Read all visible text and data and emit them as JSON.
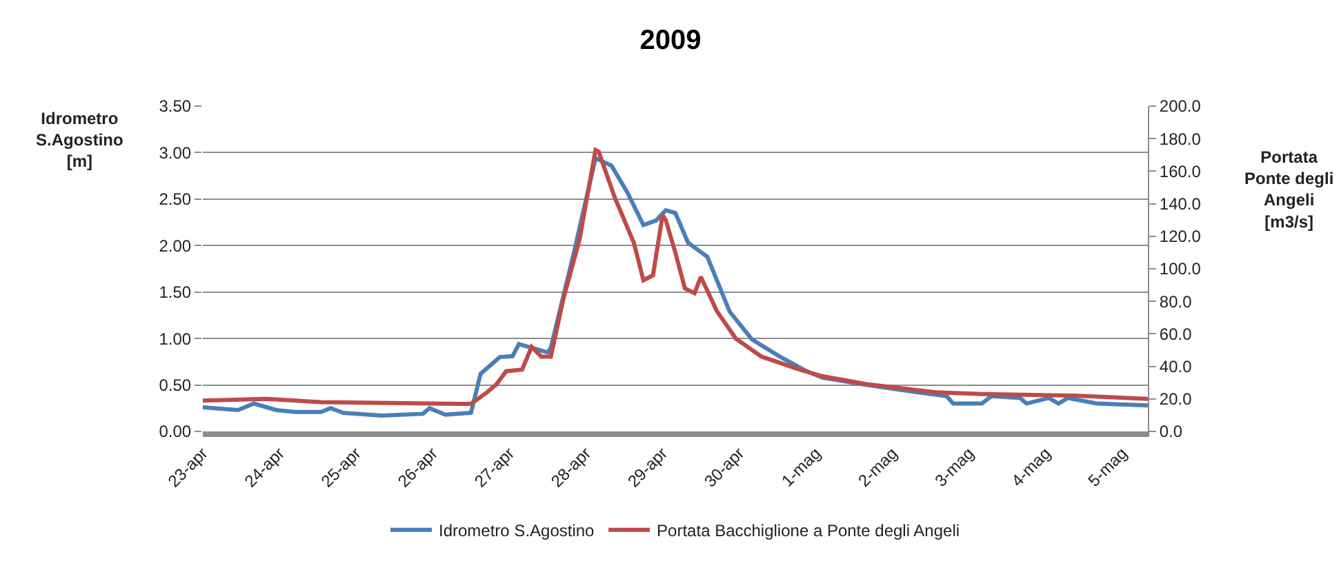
{
  "chart_data": {
    "type": "line",
    "title": "2009",
    "ylabel": "Idrometro\nS.Agostino\n[m]",
    "y2label": "Portata\nPonte degli\nAngeli\n[m3/s]",
    "xlim": [
      "2009-04-23T00:00",
      "2009-05-05T08:00"
    ],
    "xticks": [
      {
        "value": "2009-04-23",
        "label": "23-apr"
      },
      {
        "value": "2009-04-24",
        "label": "24-apr"
      },
      {
        "value": "2009-04-25",
        "label": "25-apr"
      },
      {
        "value": "2009-04-26",
        "label": "26-apr"
      },
      {
        "value": "2009-04-27",
        "label": "27-apr"
      },
      {
        "value": "2009-04-28",
        "label": "28-apr"
      },
      {
        "value": "2009-04-29",
        "label": "29-apr"
      },
      {
        "value": "2009-04-30",
        "label": "30-apr"
      },
      {
        "value": "2009-05-01",
        "label": "1-mag"
      },
      {
        "value": "2009-05-02",
        "label": "2-mag"
      },
      {
        "value": "2009-05-03",
        "label": "3-mag"
      },
      {
        "value": "2009-05-04",
        "label": "4-mag"
      },
      {
        "value": "2009-05-05",
        "label": "5-mag"
      }
    ],
    "ylim": [
      0,
      3.5
    ],
    "yticks": [
      {
        "value": 0,
        "label": "0.00"
      },
      {
        "value": 0.5,
        "label": "0.50"
      },
      {
        "value": 1,
        "label": "1.00"
      },
      {
        "value": 1.5,
        "label": "1.50"
      },
      {
        "value": 2,
        "label": "2.00"
      },
      {
        "value": 2.5,
        "label": "2.50"
      },
      {
        "value": 3,
        "label": "3.00"
      },
      {
        "value": 3.5,
        "label": "3.50"
      }
    ],
    "y2lim": [
      0,
      200
    ],
    "y2ticks": [
      {
        "value": 0,
        "label": "0.0"
      },
      {
        "value": 20,
        "label": "20.0"
      },
      {
        "value": 40,
        "label": "40.0"
      },
      {
        "value": 60,
        "label": "60.0"
      },
      {
        "value": 80,
        "label": "80.0"
      },
      {
        "value": 100,
        "label": "100.0"
      },
      {
        "value": 120,
        "label": "120.0"
      },
      {
        "value": 140,
        "label": "140.0"
      },
      {
        "value": 160,
        "label": "160.0"
      },
      {
        "value": 180,
        "label": "180.0"
      },
      {
        "value": 200,
        "label": "200.0"
      }
    ],
    "grid": "y",
    "legend": "bottom",
    "marker": "none",
    "line_style": "solid",
    "series": [
      {
        "name": "Idrometro S.Agostino",
        "color": "#4a7ebb",
        "x": [
          "2009-04-23T00:00",
          "2009-04-23T11:00",
          "2009-04-23T16:00",
          "2009-04-23T23:00",
          "2009-04-24T05:00",
          "2009-04-24T13:00",
          "2009-04-24T16:00",
          "2009-04-24T20:00",
          "2009-04-25T08:00",
          "2009-04-25T21:00",
          "2009-04-25T23:00",
          "2009-04-26T04:00",
          "2009-04-26T12:00",
          "2009-04-26T15:00",
          "2009-04-26T21:00",
          "2009-04-27T01:00",
          "2009-04-27T03:00",
          "2009-04-27T07:00",
          "2009-04-27T12:00",
          "2009-04-27T13:00",
          "2009-04-27T20:00",
          "2009-04-28T03:00",
          "2009-04-28T08:00",
          "2009-04-28T13:00",
          "2009-04-28T18:00",
          "2009-04-28T22:00",
          "2009-04-29T01:00",
          "2009-04-29T04:00",
          "2009-04-29T08:00",
          "2009-04-29T14:00",
          "2009-04-29T21:00",
          "2009-04-30T04:00",
          "2009-04-30T13:00",
          "2009-04-30T21:00",
          "2009-05-01T02:00",
          "2009-05-01T16:00",
          "2009-05-02T06:00",
          "2009-05-02T17:00",
          "2009-05-02T19:00",
          "2009-05-03T04:00",
          "2009-05-03T07:00",
          "2009-05-03T16:00",
          "2009-05-03T18:00",
          "2009-05-04T01:00",
          "2009-05-04T04:00",
          "2009-05-04T07:00",
          "2009-05-04T16:00",
          "2009-05-05T08:00"
        ],
        "values": [
          0.26,
          0.23,
          0.3,
          0.23,
          0.21,
          0.21,
          0.25,
          0.2,
          0.17,
          0.19,
          0.25,
          0.18,
          0.2,
          0.62,
          0.8,
          0.81,
          0.94,
          0.9,
          0.85,
          0.9,
          1.89,
          2.94,
          2.86,
          2.57,
          2.22,
          2.27,
          2.38,
          2.35,
          2.03,
          1.88,
          1.29,
          0.99,
          0.8,
          0.65,
          0.58,
          0.5,
          0.43,
          0.38,
          0.3,
          0.3,
          0.38,
          0.36,
          0.3,
          0.36,
          0.3,
          0.36,
          0.3,
          0.28
        ]
      },
      {
        "name": "Portata Bacchiglione a Ponte degli Angeli",
        "color": "#be4b48",
        "axis": "y2",
        "x": [
          "2009-04-23T00:00",
          "2009-04-23T20:00",
          "2009-04-24T13:00",
          "2009-04-26T08:00",
          "2009-04-26T12:00",
          "2009-04-26T17:00",
          "2009-04-26T20:00",
          "2009-04-26T23:00",
          "2009-04-27T04:00",
          "2009-04-27T07:00",
          "2009-04-27T10:00",
          "2009-04-27T13:00",
          "2009-04-27T17:00",
          "2009-04-27T22:00",
          "2009-04-28T03:00",
          "2009-04-28T04:00",
          "2009-04-28T09:00",
          "2009-04-28T15:00",
          "2009-04-28T18:00",
          "2009-04-28T21:00",
          "2009-04-29T00:00",
          "2009-04-29T01:00",
          "2009-04-29T04:00",
          "2009-04-29T07:00",
          "2009-04-29T10:00",
          "2009-04-29T12:00",
          "2009-04-29T17:00",
          "2009-04-29T23:00",
          "2009-04-30T07:00",
          "2009-04-30T19:00",
          "2009-05-01T02:00",
          "2009-05-01T16:00",
          "2009-05-02T14:00",
          "2009-05-03T04:00",
          "2009-05-04T09:00",
          "2009-05-05T08:00"
        ],
        "values": [
          19,
          20,
          18,
          17,
          17,
          24,
          29,
          37,
          38,
          52,
          46,
          46,
          82,
          118,
          173,
          172,
          144,
          116,
          93,
          96,
          133,
          130,
          110,
          88,
          85,
          95,
          74,
          57,
          46,
          38,
          34,
          29,
          24,
          23,
          22,
          20
        ]
      }
    ]
  }
}
